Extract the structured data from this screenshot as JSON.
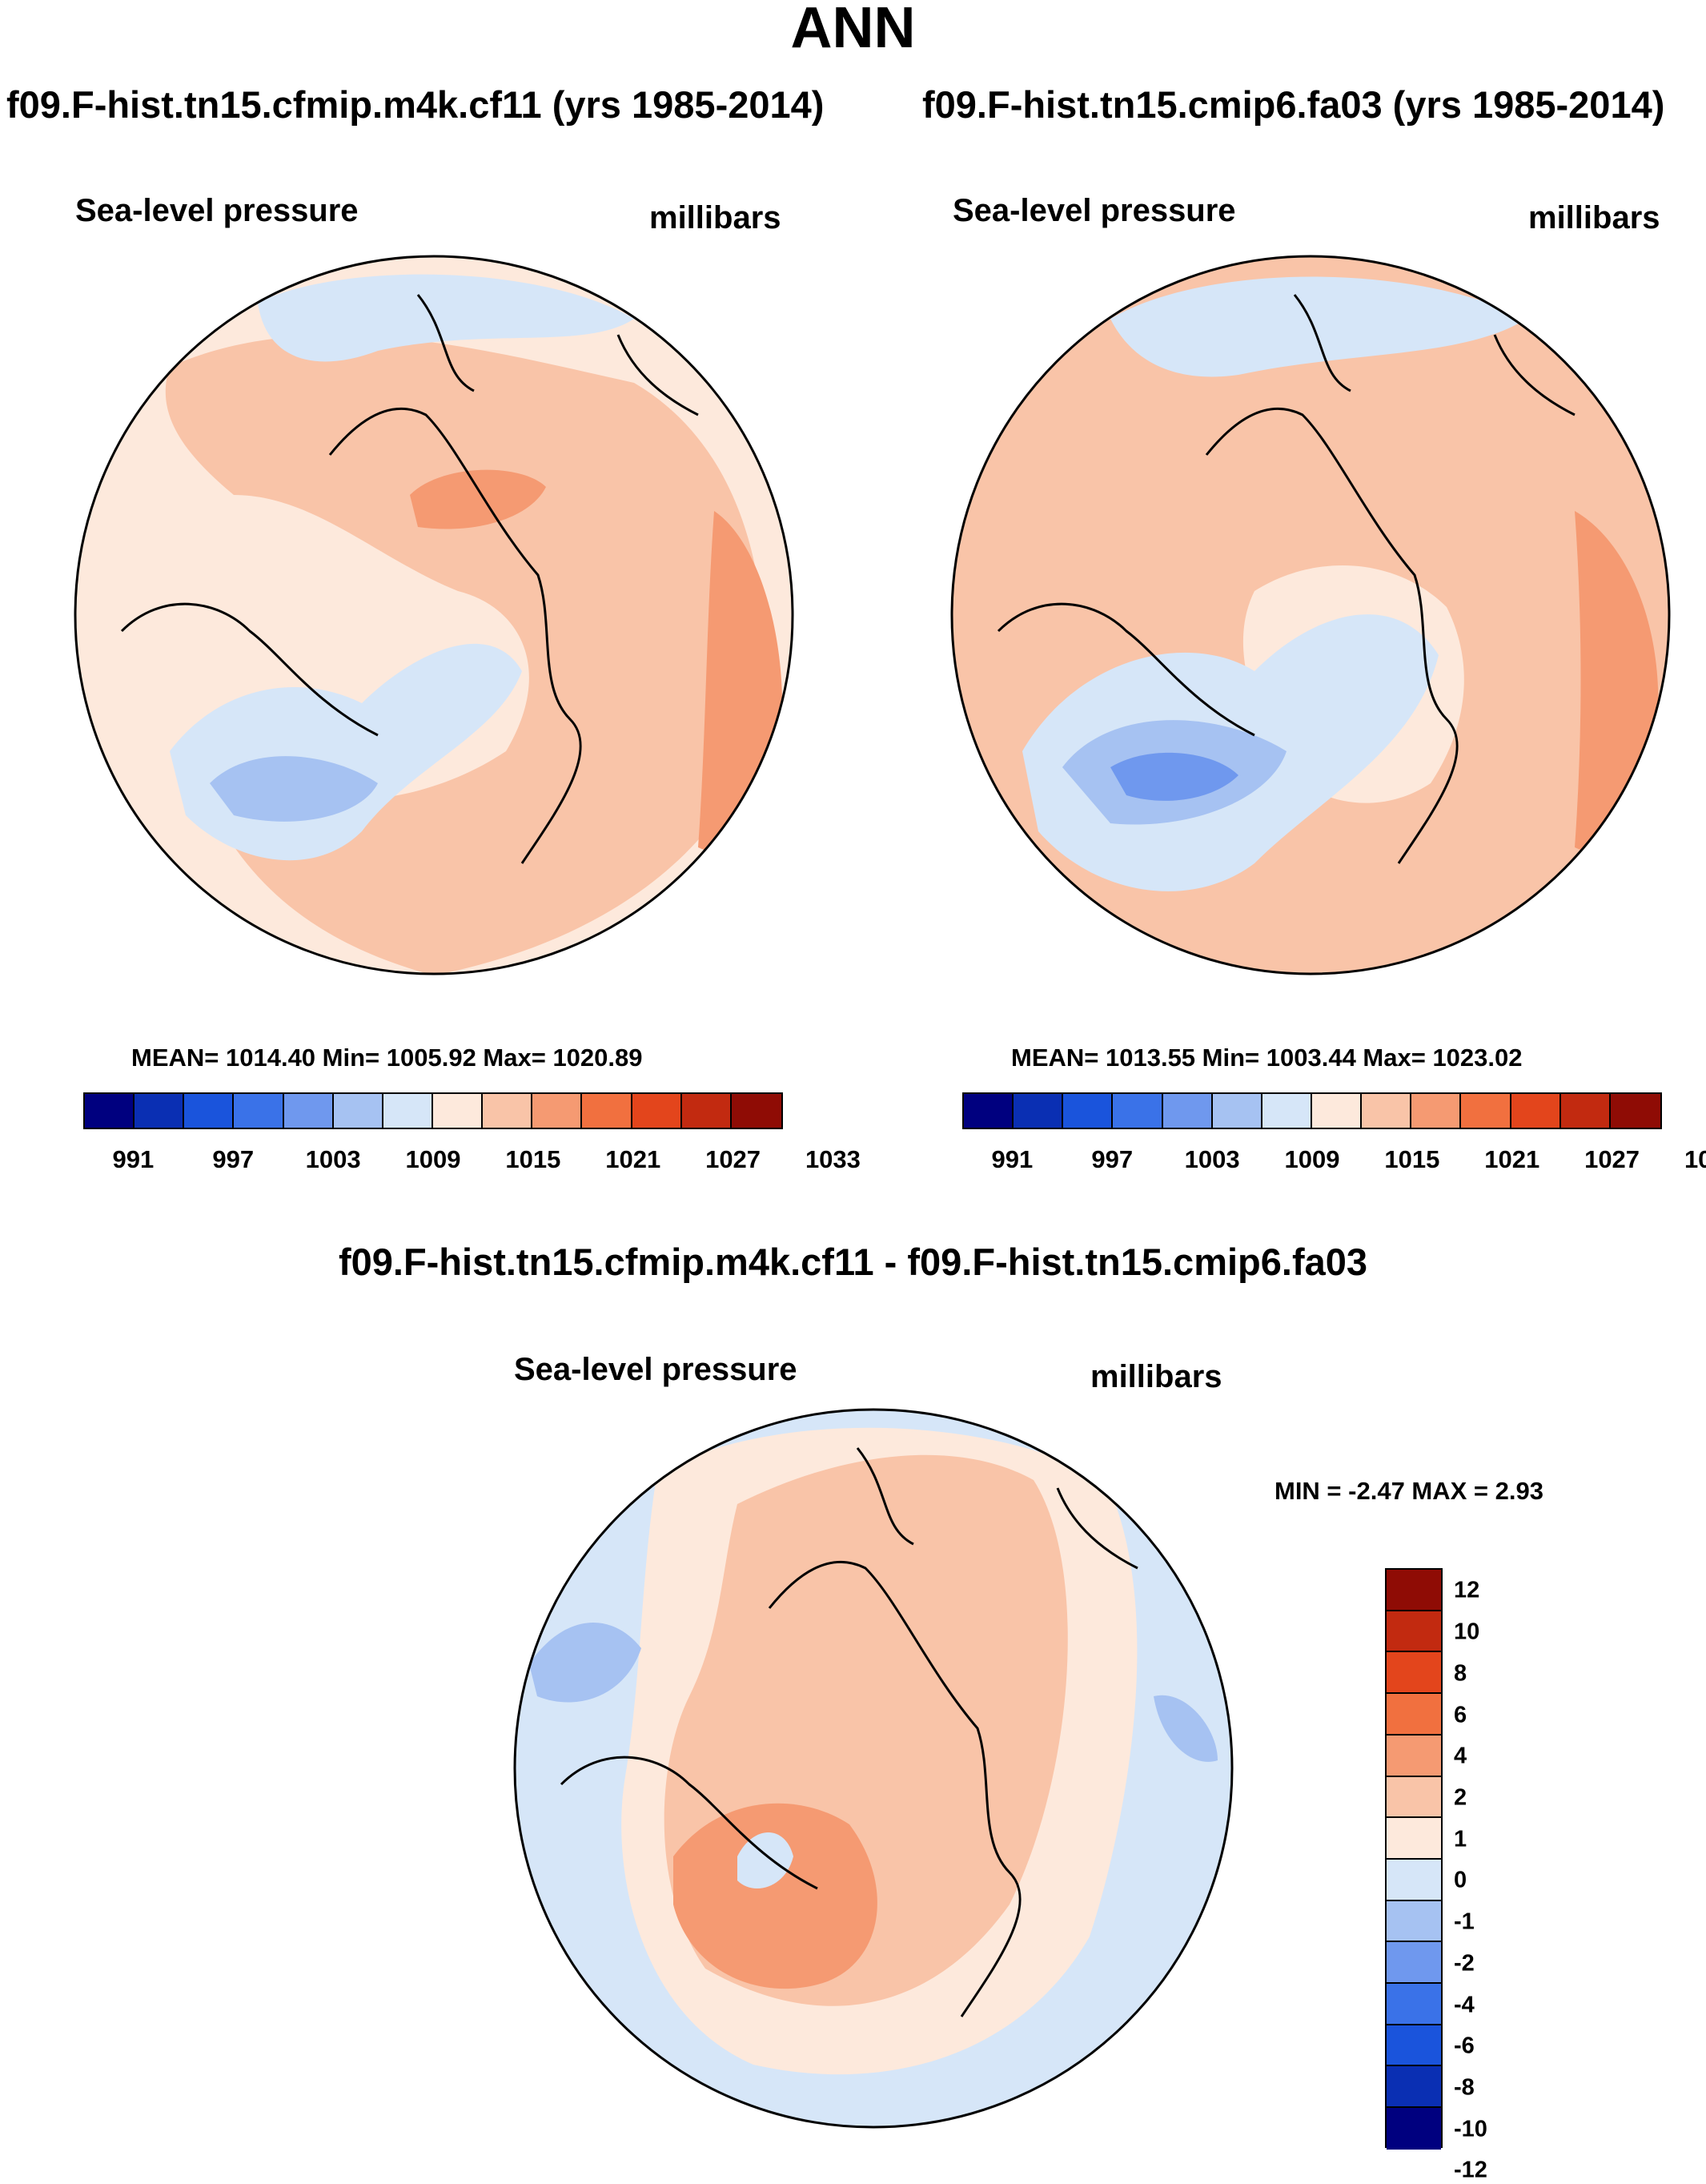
{
  "figure": {
    "title": "ANN",
    "case_a_title": "f09.F-hist.tn15.cfmip.m4k.cf11 (yrs 1985-2014)",
    "case_b_title": "f09.F-hist.tn15.cmip6.fa03 (yrs 1985-2014)",
    "diff_title": "f09.F-hist.tn15.cfmip.m4k.cf11 - f09.F-hist.tn15.cmip6.fa03"
  },
  "panels": {
    "a": {
      "variable": "Sea-level pressure",
      "units": "millibars",
      "stats": "MEAN= 1014.40  Min= 1005.92  Max= 1020.89"
    },
    "b": {
      "variable": "Sea-level pressure",
      "units": "millibars",
      "stats": "MEAN= 1013.55  Min= 1003.44  Max= 1023.02"
    },
    "diff": {
      "variable": "Sea-level pressure",
      "units": "millibars",
      "stats": "MIN =  -2.47 MAX =   2.93"
    }
  },
  "colorbar_main": {
    "colors": [
      "#00007f",
      "#0a2fb3",
      "#1a54dc",
      "#3a72e8",
      "#6f98ee",
      "#a6c2f2",
      "#d6e6f8",
      "#fde9dc",
      "#f9c4a8",
      "#f59a72",
      "#f1703f",
      "#e3451c",
      "#c22a10",
      "#8f0c05"
    ],
    "tick_labels": [
      "991",
      "997",
      "1003",
      "1009",
      "1015",
      "1021",
      "1027",
      "1033"
    ]
  },
  "colorbar_diff": {
    "colors": [
      "#8f0c05",
      "#c22a10",
      "#e3451c",
      "#f1703f",
      "#f59a72",
      "#f9c4a8",
      "#fde9dc",
      "#d6e6f8",
      "#a6c2f2",
      "#6f98ee",
      "#3a72e8",
      "#1a54dc",
      "#0a2fb3",
      "#00007f"
    ],
    "tick_labels": [
      "12",
      "10",
      "8",
      "6",
      "4",
      "2",
      "1",
      "0",
      "-1",
      "-2",
      "-4",
      "-6",
      "-8",
      "-10",
      "-12"
    ]
  }
}
